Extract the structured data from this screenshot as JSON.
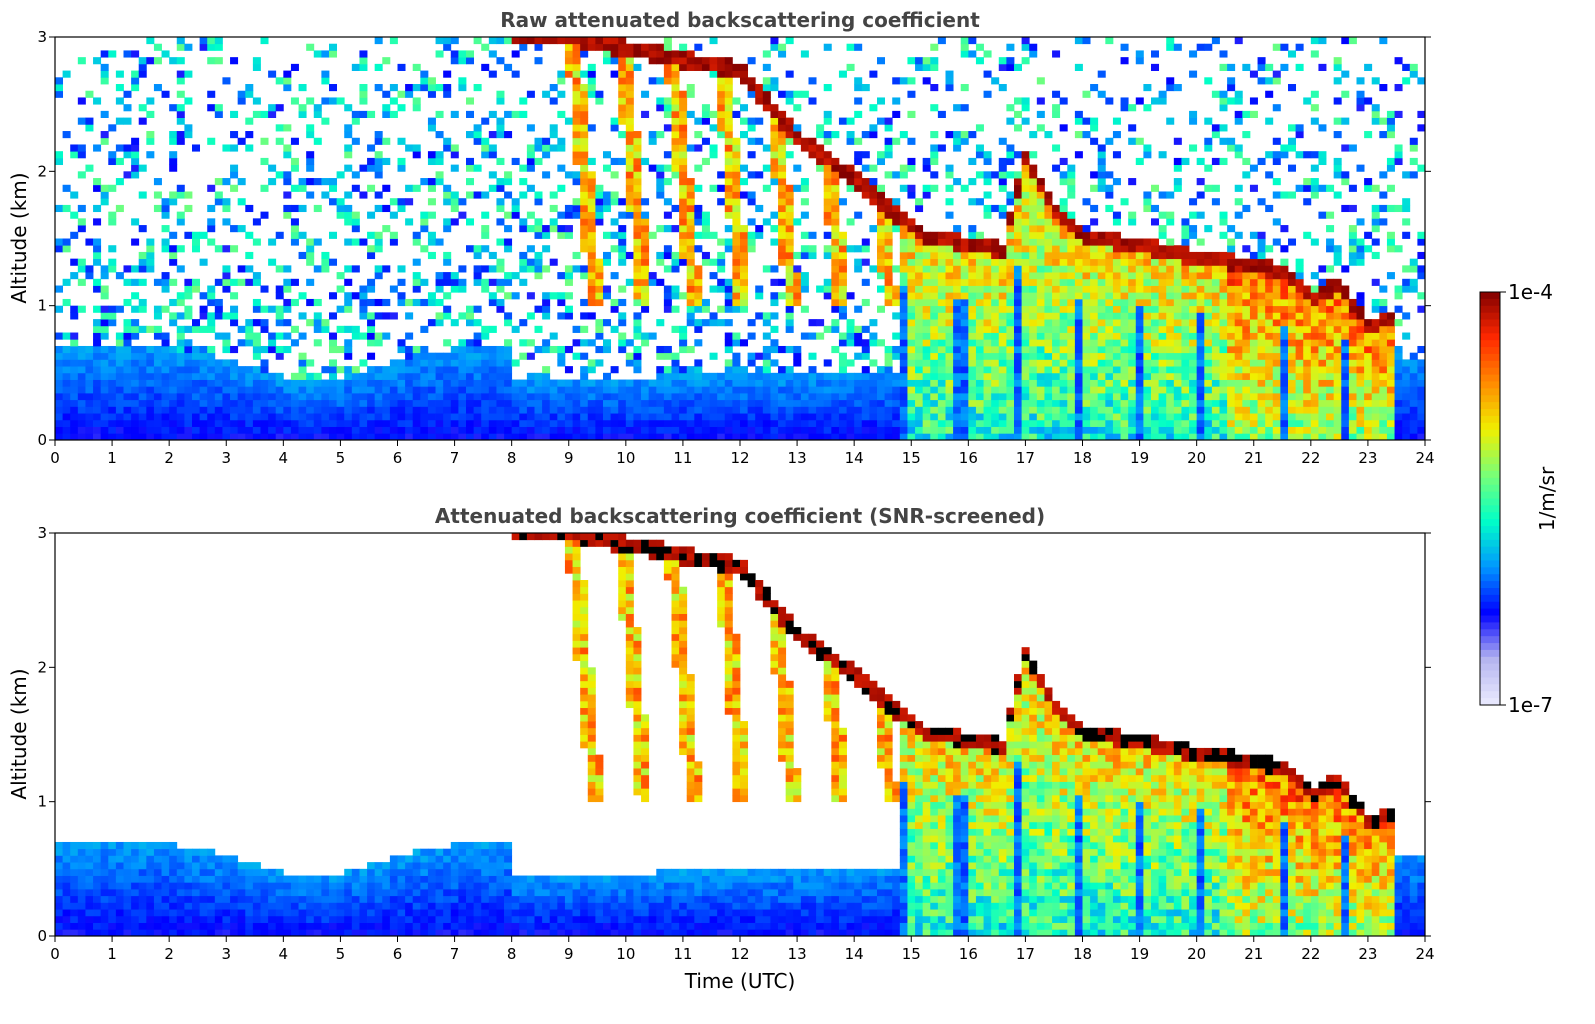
{
  "chart_data": [
    {
      "type": "heatmap",
      "title": "Raw attenuated backscattering coefficient",
      "xlabel": "",
      "ylabel": "Altitude (km)",
      "xlim": [
        0,
        24
      ],
      "ylim": [
        0,
        3
      ],
      "x_ticks": [
        "0",
        "1",
        "2",
        "3",
        "4",
        "5",
        "6",
        "7",
        "8",
        "9",
        "10",
        "11",
        "12",
        "13",
        "14",
        "15",
        "16",
        "17",
        "18",
        "19",
        "20",
        "21",
        "22",
        "23",
        "24"
      ],
      "y_ticks": [
        "0",
        "1",
        "2",
        "3"
      ],
      "screened": false,
      "features": {
        "cloud_base_top_km": [
          {
            "t": 8.0,
            "h": 3.0
          },
          {
            "t": 9.0,
            "h": 3.0
          },
          {
            "t": 12.0,
            "h": 2.75
          },
          {
            "t": 13.0,
            "h": 2.25
          },
          {
            "t": 14.0,
            "h": 1.95
          },
          {
            "t": 14.8,
            "h": 1.65
          },
          {
            "t": 15.3,
            "h": 1.5
          },
          {
            "t": 16.2,
            "h": 1.45
          },
          {
            "t": 16.6,
            "h": 1.4
          },
          {
            "t": 17.0,
            "h": 2.1
          },
          {
            "t": 17.5,
            "h": 1.7
          },
          {
            "t": 18.0,
            "h": 1.5
          },
          {
            "t": 19.0,
            "h": 1.45
          },
          {
            "t": 20.0,
            "h": 1.35
          },
          {
            "t": 21.0,
            "h": 1.3
          },
          {
            "t": 21.5,
            "h": 1.25
          },
          {
            "t": 22.0,
            "h": 1.05
          },
          {
            "t": 22.5,
            "h": 1.15
          },
          {
            "t": 23.0,
            "h": 0.85
          },
          {
            "t": 23.5,
            "h": 0.9
          }
        ]
      }
    },
    {
      "type": "heatmap",
      "title": "Attenuated backscattering coefficient (SNR-screened)",
      "xlabel": "Time (UTC)",
      "ylabel": "Altitude (km)",
      "xlim": [
        0,
        24
      ],
      "ylim": [
        0,
        3
      ],
      "x_ticks": [
        "0",
        "1",
        "2",
        "3",
        "4",
        "5",
        "6",
        "7",
        "8",
        "9",
        "10",
        "11",
        "12",
        "13",
        "14",
        "15",
        "16",
        "17",
        "18",
        "19",
        "20",
        "21",
        "22",
        "23",
        "24"
      ],
      "y_ticks": [
        "0",
        "1",
        "2",
        "3"
      ],
      "screened": true
    }
  ],
  "colorbar": {
    "label": "1/m/sr",
    "max_label": "1e-4",
    "min_label": "1e-7",
    "scale": "log",
    "colors": [
      "#ebebff",
      "#b4b4f0",
      "#0000ff",
      "#0096ff",
      "#00ffc8",
      "#78ff78",
      "#f0f000",
      "#ff8c00",
      "#ff2800",
      "#800000"
    ]
  }
}
